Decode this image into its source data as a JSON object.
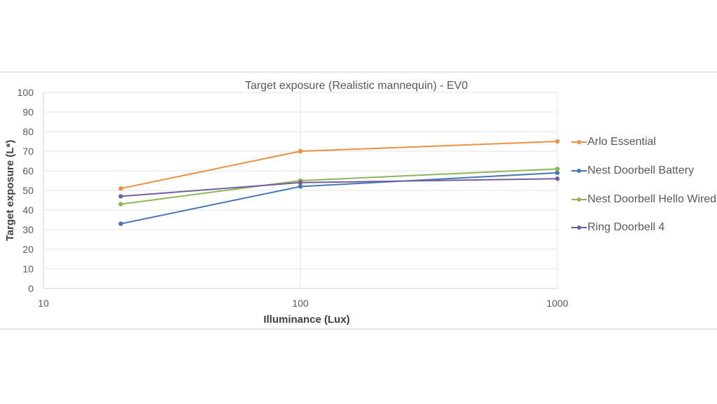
{
  "chart": {
    "title": "Target exposure (Realistic mannequin) - EV0",
    "xlabel": "Illuminance (Lux)",
    "ylabel": "Target exposure (L*)",
    "y_ticks": [
      "0",
      "10",
      "20",
      "30",
      "40",
      "50",
      "60",
      "70",
      "80",
      "90",
      "100"
    ],
    "x_ticks": [
      "10",
      "100",
      "1000"
    ],
    "legend": [
      {
        "label": "Arlo Essential",
        "color": "#ED8F45"
      },
      {
        "label": "Nest Doorbell Battery",
        "color": "#4A78B5"
      },
      {
        "label": "Nest Doorbell Hello Wired",
        "color": "#8DB65A"
      },
      {
        "label": "Ring Doorbell 4",
        "color": "#7460A0"
      }
    ]
  },
  "chart_data": {
    "type": "line",
    "title": "Target exposure (Realistic mannequin) - EV0",
    "xlabel": "Illuminance (Lux)",
    "ylabel": "Target exposure (L*)",
    "x_scale": "log",
    "x": [
      20,
      100,
      1000
    ],
    "xlim": [
      10,
      1000
    ],
    "ylim": [
      0,
      100
    ],
    "x_ticks": [
      10,
      100,
      1000
    ],
    "y_ticks": [
      0,
      10,
      20,
      30,
      40,
      50,
      60,
      70,
      80,
      90,
      100
    ],
    "grid": true,
    "legend_position": "right",
    "series": [
      {
        "name": "Arlo Essential",
        "color": "#ED8F45",
        "values": [
          51,
          70,
          75
        ]
      },
      {
        "name": "Nest Doorbell Battery",
        "color": "#4A78B5",
        "values": [
          33,
          52,
          59
        ]
      },
      {
        "name": "Nest Doorbell Hello Wired",
        "color": "#8DB65A",
        "values": [
          43,
          55,
          61
        ]
      },
      {
        "name": "Ring Doorbell 4",
        "color": "#7460A0",
        "values": [
          47,
          54,
          56
        ]
      }
    ]
  }
}
